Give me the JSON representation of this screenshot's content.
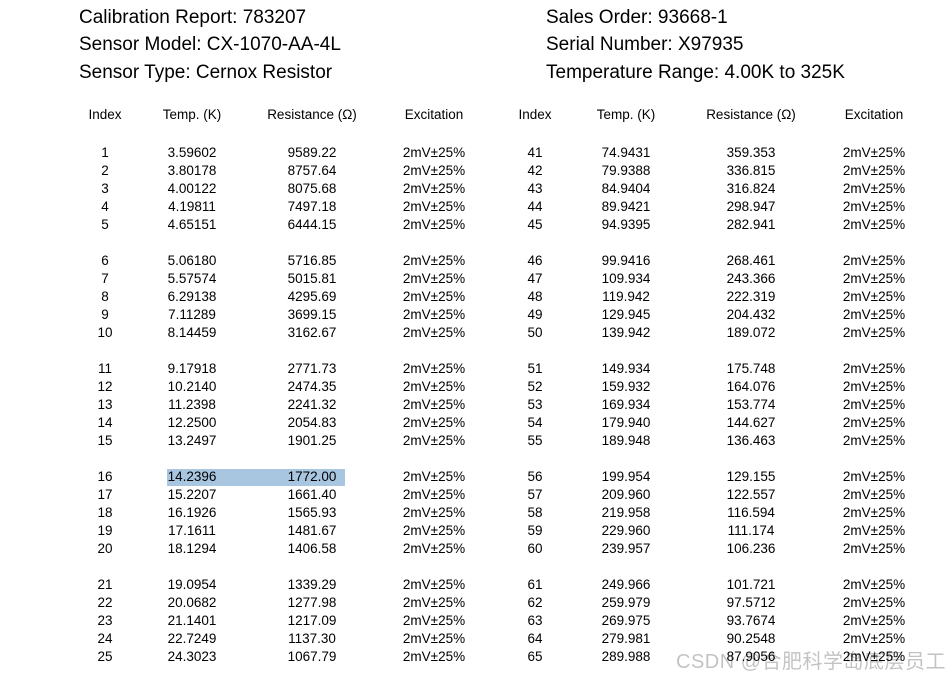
{
  "report_info": {
    "left_lines": [
      "Calibration Report: 783207",
      "Sensor Model: CX-1070-AA-4L",
      "Sensor Type: Cernox Resistor"
    ],
    "right_lines": [
      "Sales Order: 93668-1",
      "Serial Number: X97935",
      "Temperature Range: 4.00K to 325K"
    ]
  },
  "table": {
    "columns": [
      "Index",
      "Temp. (K)",
      "Resistance (Ω)",
      "Excitation"
    ],
    "group_size": 5,
    "left_rows": [
      [
        "1",
        "3.59602",
        "9589.22",
        "2mV±25%"
      ],
      [
        "2",
        "3.80178",
        "8757.64",
        "2mV±25%"
      ],
      [
        "3",
        "4.00122",
        "8075.68",
        "2mV±25%"
      ],
      [
        "4",
        "4.19811",
        "7497.18",
        "2mV±25%"
      ],
      [
        "5",
        "4.65151",
        "6444.15",
        "2mV±25%"
      ],
      [
        "6",
        "5.06180",
        "5716.85",
        "2mV±25%"
      ],
      [
        "7",
        "5.57574",
        "5015.81",
        "2mV±25%"
      ],
      [
        "8",
        "6.29138",
        "4295.69",
        "2mV±25%"
      ],
      [
        "9",
        "7.11289",
        "3699.15",
        "2mV±25%"
      ],
      [
        "10",
        "8.14459",
        "3162.67",
        "2mV±25%"
      ],
      [
        "11",
        "9.17918",
        "2771.73",
        "2mV±25%"
      ],
      [
        "12",
        "10.2140",
        "2474.35",
        "2mV±25%"
      ],
      [
        "13",
        "11.2398",
        "2241.32",
        "2mV±25%"
      ],
      [
        "14",
        "12.2500",
        "2054.83",
        "2mV±25%"
      ],
      [
        "15",
        "13.2497",
        "1901.25",
        "2mV±25%"
      ],
      [
        "16",
        "14.2396",
        "1772.00",
        "2mV±25%"
      ],
      [
        "17",
        "15.2207",
        "1661.40",
        "2mV±25%"
      ],
      [
        "18",
        "16.1926",
        "1565.93",
        "2mV±25%"
      ],
      [
        "19",
        "17.1611",
        "1481.67",
        "2mV±25%"
      ],
      [
        "20",
        "18.1294",
        "1406.58",
        "2mV±25%"
      ],
      [
        "21",
        "19.0954",
        "1339.29",
        "2mV±25%"
      ],
      [
        "22",
        "20.0682",
        "1277.98",
        "2mV±25%"
      ],
      [
        "23",
        "21.1401",
        "1217.09",
        "2mV±25%"
      ],
      [
        "24",
        "22.7249",
        "1137.30",
        "2mV±25%"
      ],
      [
        "25",
        "24.3023",
        "1067.79",
        "2mV±25%"
      ]
    ],
    "right_rows": [
      [
        "41",
        "74.9431",
        "359.353",
        "2mV±25%"
      ],
      [
        "42",
        "79.9388",
        "336.815",
        "2mV±25%"
      ],
      [
        "43",
        "84.9404",
        "316.824",
        "2mV±25%"
      ],
      [
        "44",
        "89.9421",
        "298.947",
        "2mV±25%"
      ],
      [
        "45",
        "94.9395",
        "282.941",
        "2mV±25%"
      ],
      [
        "46",
        "99.9416",
        "268.461",
        "2mV±25%"
      ],
      [
        "47",
        "109.934",
        "243.366",
        "2mV±25%"
      ],
      [
        "48",
        "119.942",
        "222.319",
        "2mV±25%"
      ],
      [
        "49",
        "129.945",
        "204.432",
        "2mV±25%"
      ],
      [
        "50",
        "139.942",
        "189.072",
        "2mV±25%"
      ],
      [
        "51",
        "149.934",
        "175.748",
        "2mV±25%"
      ],
      [
        "52",
        "159.932",
        "164.076",
        "2mV±25%"
      ],
      [
        "53",
        "169.934",
        "153.774",
        "2mV±25%"
      ],
      [
        "54",
        "179.940",
        "144.627",
        "2mV±25%"
      ],
      [
        "55",
        "189.948",
        "136.463",
        "2mV±25%"
      ],
      [
        "56",
        "199.954",
        "129.155",
        "2mV±25%"
      ],
      [
        "57",
        "209.960",
        "122.557",
        "2mV±25%"
      ],
      [
        "58",
        "219.958",
        "116.594",
        "2mV±25%"
      ],
      [
        "59",
        "229.960",
        "111.174",
        "2mV±25%"
      ],
      [
        "60",
        "239.957",
        "106.236",
        "2mV±25%"
      ],
      [
        "61",
        "249.966",
        "101.721",
        "2mV±25%"
      ],
      [
        "62",
        "259.979",
        "97.5712",
        "2mV±25%"
      ],
      [
        "63",
        "269.975",
        "93.7674",
        "2mV±25%"
      ],
      [
        "64",
        "279.981",
        "90.2548",
        "2mV±25%"
      ],
      [
        "65",
        "289.988",
        "87.9056",
        "2mV±25%"
      ]
    ]
  },
  "highlight": {
    "table": "left",
    "row_index": "16",
    "cells": [
      "Temp. (K)",
      "Resistance (Ω)"
    ],
    "color": "#a9c6e1"
  },
  "watermark": {
    "text": "CSDN @合肥科学岛底层员工"
  }
}
